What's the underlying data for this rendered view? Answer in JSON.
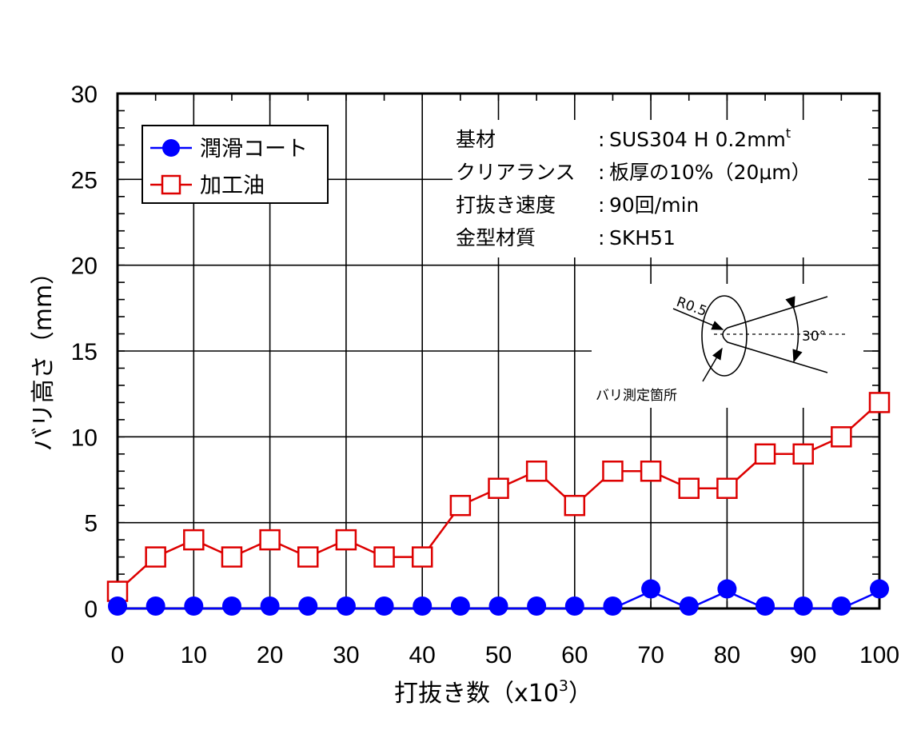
{
  "chart_data": {
    "type": "line",
    "xlabel": "打抜き数（x10",
    "xlabel_sup": "3",
    "xlabel_tail": "）",
    "ylabel": "バリ高さ（mm）",
    "xlim": [
      0,
      100
    ],
    "ylim": [
      0,
      30
    ],
    "xticks": [
      0,
      10,
      20,
      30,
      40,
      50,
      60,
      70,
      80,
      90,
      100
    ],
    "yticks": [
      0,
      5,
      10,
      15,
      20,
      25,
      30
    ],
    "grid": true,
    "legend_position": "top-left",
    "series": [
      {
        "name": "潤滑コート",
        "color": "#0000ff",
        "marker": "filled-circle",
        "x": [
          0,
          5,
          10,
          15,
          20,
          25,
          30,
          35,
          40,
          45,
          50,
          55,
          60,
          65,
          70,
          75,
          80,
          85,
          90,
          95,
          100
        ],
        "y": [
          0,
          0,
          0,
          0,
          0,
          0,
          0,
          0,
          0,
          0,
          0,
          0,
          0,
          0,
          1,
          0,
          1,
          0,
          0,
          0,
          1
        ]
      },
      {
        "name": "加工油",
        "color": "#dd0000",
        "marker": "open-square",
        "x": [
          0,
          5,
          10,
          15,
          20,
          25,
          30,
          35,
          40,
          45,
          50,
          55,
          60,
          65,
          70,
          75,
          80,
          85,
          90,
          95,
          100
        ],
        "y": [
          1,
          3,
          4,
          3,
          4,
          3,
          4,
          3,
          3,
          6,
          7,
          8,
          6,
          8,
          8,
          7,
          7,
          9,
          9,
          10,
          12
        ]
      }
    ],
    "annotations": {
      "conditions": [
        {
          "label": "基材",
          "value": "SUS304 H 0.2mm",
          "sup": "t"
        },
        {
          "label": "クリアランス",
          "value": "板厚の10%（20μm）",
          "sup": ""
        },
        {
          "label": "打抜き速度",
          "value": "90回/min",
          "sup": ""
        },
        {
          "label": "金型材質",
          "value": "SKH51",
          "sup": ""
        }
      ],
      "separator": ":",
      "diagram": {
        "radius_label": "R0.5",
        "angle_label": "30°",
        "measure_label": "バリ測定箇所"
      }
    }
  }
}
